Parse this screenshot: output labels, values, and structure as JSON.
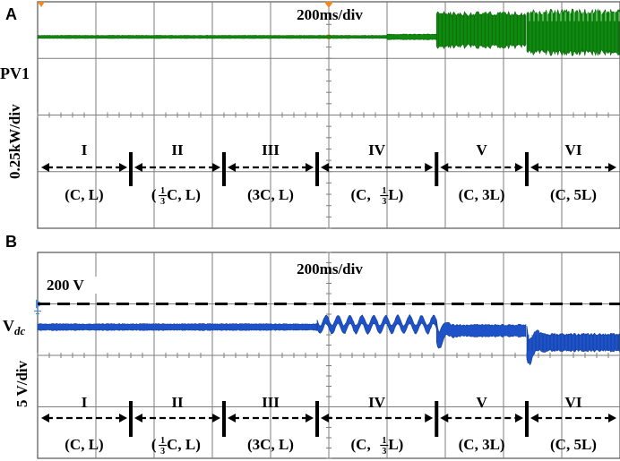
{
  "colors": {
    "panel_a_trace": "#0f8a0f",
    "panel_a_trace_dark": "#0b5e0b",
    "panel_a_trace_light": "#9be39b",
    "panel_b_trace": "#1d52c8",
    "panel_b_trace_dark": "#123a8e",
    "reference_line": "#000000",
    "grid": "#7d7d7d",
    "marker_orange": "#f08a1c",
    "marker_blue": "#4a8be0"
  },
  "chart_data": [
    {
      "type": "line",
      "panel_label": "A",
      "time_scale": "200ms/div",
      "trace_label": "PV1",
      "y_scale_label": "0.25kW/div",
      "divisions": {
        "x": 10,
        "y": 4
      },
      "segments": [
        {
          "roman": "I",
          "condition": {
            "pre": "(C, L)"
          },
          "x_div": [
            0.0,
            1.6
          ]
        },
        {
          "roman": "II",
          "condition": {
            "pre": "(",
            "num": "1",
            "den": "3",
            "post": "C, L)"
          },
          "x_div": [
            1.6,
            3.2
          ]
        },
        {
          "roman": "III",
          "condition": {
            "pre": "(3C, L)"
          },
          "x_div": [
            3.2,
            4.8
          ]
        },
        {
          "roman": "IV",
          "condition": {
            "pre": "(C, ",
            "num": "1",
            "den": "3",
            "post": "L)"
          },
          "x_div": [
            4.8,
            6.85
          ]
        },
        {
          "roman": "V",
          "condition": {
            "pre": "(C, 3L)"
          },
          "x_div": [
            6.85,
            8.4
          ]
        },
        {
          "roman": "VI",
          "condition": {
            "pre": "(C, 5L)"
          },
          "x_div": [
            8.4,
            10.0
          ]
        }
      ],
      "series": [
        {
          "segments": [
            {
              "x_div": [
                0.0,
                6.0
              ],
              "mean_div": 0.62,
              "ripple_div": 0.05
            },
            {
              "x_div": [
                6.0,
                6.85
              ],
              "mean_div": 0.62,
              "ripple_div": 0.09
            },
            {
              "x_div": [
                6.85,
                8.4
              ],
              "mean_div": 0.5,
              "ripple_div": 0.57
            },
            {
              "x_div": [
                8.4,
                10.0
              ],
              "mean_div": 0.54,
              "ripple_div": 0.72
            }
          ]
        }
      ]
    },
    {
      "type": "line",
      "panel_label": "B",
      "time_scale": "200ms/div",
      "reference_label": "200 V",
      "trace_label": {
        "main": "V",
        "sub": "dc"
      },
      "y_scale_label": "5 V/div",
      "divisions": {
        "x": 10,
        "y": 4
      },
      "reference_level_div": 1.0,
      "segments": [
        {
          "roman": "I",
          "condition": {
            "pre": "(C, L)"
          },
          "x_div": [
            0.0,
            1.6
          ]
        },
        {
          "roman": "II",
          "condition": {
            "pre": "(",
            "num": "1",
            "den": "3",
            "post": "C, L)"
          },
          "x_div": [
            1.6,
            3.2
          ]
        },
        {
          "roman": "III",
          "condition": {
            "pre": "(3C, L)"
          },
          "x_div": [
            3.2,
            4.8
          ]
        },
        {
          "roman": "IV",
          "condition": {
            "pre": "(C, ",
            "num": "1",
            "den": "3",
            "post": "L)"
          },
          "x_div": [
            4.8,
            6.85
          ]
        },
        {
          "roman": "V",
          "condition": {
            "pre": "(C, 3L)"
          },
          "x_div": [
            6.85,
            8.4
          ]
        },
        {
          "roman": "VI",
          "condition": {
            "pre": "(C, 5L)"
          },
          "x_div": [
            8.4,
            10.0
          ]
        }
      ],
      "series": [
        {
          "segments": [
            {
              "x_div": [
                0.0,
                4.8
              ],
              "mean_div": 1.45,
              "ripple_div": 0.12
            },
            {
              "x_div": [
                4.8,
                6.85
              ],
              "mean_div": 1.4,
              "ripple_div": 0.16,
              "oscillation": true
            },
            {
              "x_div": [
                6.85,
                8.4
              ],
              "mean_div": 1.52,
              "ripple_div": 0.22,
              "transient": true
            },
            {
              "x_div": [
                8.4,
                10.0
              ],
              "mean_div": 1.75,
              "ripple_div": 0.32,
              "transient": true
            }
          ]
        }
      ]
    }
  ]
}
